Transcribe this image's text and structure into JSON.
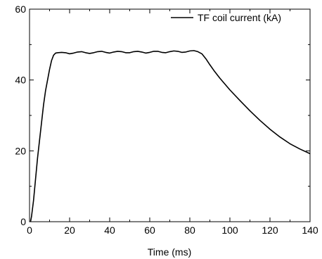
{
  "chart_data": {
    "type": "line",
    "title": "",
    "xlabel": "Time (ms)",
    "ylabel": "",
    "xlim": [
      0,
      140
    ],
    "ylim": [
      0,
      60
    ],
    "x_ticks": [
      "0",
      "20",
      "40",
      "60",
      "80",
      "100",
      "120",
      "140"
    ],
    "y_ticks": [
      "0",
      "20",
      "40",
      "60"
    ],
    "grid": false,
    "legend_position": "top-right",
    "line_color": "#000000",
    "series": [
      {
        "name": "TF coil current (kA)",
        "points": [
          [
            0.5,
            0
          ],
          [
            1,
            1.5
          ],
          [
            2,
            6
          ],
          [
            3,
            12
          ],
          [
            4,
            18
          ],
          [
            5,
            23
          ],
          [
            6,
            28
          ],
          [
            7,
            33
          ],
          [
            8,
            37
          ],
          [
            9,
            40
          ],
          [
            10,
            43
          ],
          [
            11,
            45.5
          ],
          [
            12,
            47
          ],
          [
            13,
            47.6
          ],
          [
            14,
            47.7
          ],
          [
            16,
            47.8
          ],
          [
            18,
            47.7
          ],
          [
            20,
            47.4
          ],
          [
            22,
            47.6
          ],
          [
            24,
            47.9
          ],
          [
            26,
            48.0
          ],
          [
            28,
            47.7
          ],
          [
            30,
            47.5
          ],
          [
            32,
            47.7
          ],
          [
            34,
            48.0
          ],
          [
            36,
            48.1
          ],
          [
            38,
            47.8
          ],
          [
            40,
            47.6
          ],
          [
            42,
            47.9
          ],
          [
            44,
            48.1
          ],
          [
            46,
            48.0
          ],
          [
            48,
            47.7
          ],
          [
            50,
            47.7
          ],
          [
            52,
            48.0
          ],
          [
            54,
            48.1
          ],
          [
            56,
            47.9
          ],
          [
            58,
            47.6
          ],
          [
            60,
            47.8
          ],
          [
            62,
            48.1
          ],
          [
            64,
            48.1
          ],
          [
            66,
            47.8
          ],
          [
            68,
            47.7
          ],
          [
            70,
            48.0
          ],
          [
            72,
            48.2
          ],
          [
            74,
            48.1
          ],
          [
            76,
            47.8
          ],
          [
            78,
            47.9
          ],
          [
            80,
            48.2
          ],
          [
            82,
            48.3
          ],
          [
            84,
            48.0
          ],
          [
            86,
            47.4
          ],
          [
            88,
            46.0
          ],
          [
            90,
            44.3
          ],
          [
            92,
            42.7
          ],
          [
            95,
            40.5
          ],
          [
            100,
            37.2
          ],
          [
            105,
            34.2
          ],
          [
            110,
            31.3
          ],
          [
            115,
            28.6
          ],
          [
            120,
            26.1
          ],
          [
            125,
            23.9
          ],
          [
            130,
            22.0
          ],
          [
            135,
            20.5
          ],
          [
            140,
            19.2
          ]
        ]
      }
    ]
  }
}
